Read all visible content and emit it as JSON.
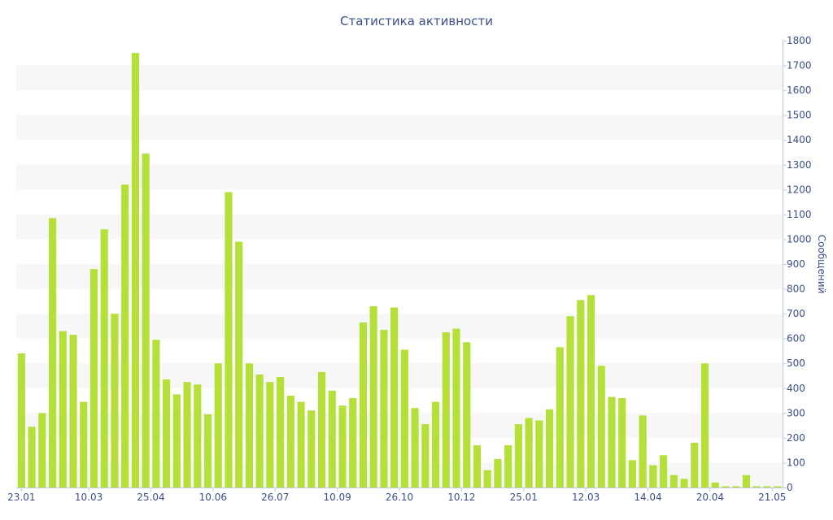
{
  "chart_data": {
    "type": "bar",
    "title": "Статистика активности",
    "ylabel": "Сообщений",
    "ylim": [
      0,
      1800
    ],
    "y_ticks": [
      0,
      100,
      200,
      300,
      400,
      500,
      600,
      700,
      800,
      900,
      1000,
      1100,
      1200,
      1300,
      1400,
      1500,
      1600,
      1700,
      1800
    ],
    "x_tick_labels": [
      {
        "label": "23.01",
        "index": 0
      },
      {
        "label": "10.03",
        "index": 6.5
      },
      {
        "label": "25.04",
        "index": 12.5
      },
      {
        "label": "10.06",
        "index": 18.5
      },
      {
        "label": "26.07",
        "index": 24.5
      },
      {
        "label": "10.09",
        "index": 30.5
      },
      {
        "label": "26.10",
        "index": 36.5
      },
      {
        "label": "10.12",
        "index": 42.5
      },
      {
        "label": "25.01",
        "index": 48.5
      },
      {
        "label": "12.03",
        "index": 54.5
      },
      {
        "label": "14.04",
        "index": 60.5
      },
      {
        "label": "20.04",
        "index": 66.5
      },
      {
        "label": "21.05",
        "index": 72.5
      }
    ],
    "bar_color": "#b5e03a",
    "grid": "horizontal-bands",
    "values": [
      540,
      245,
      300,
      1085,
      630,
      615,
      345,
      880,
      1040,
      700,
      1220,
      1750,
      1345,
      595,
      435,
      375,
      425,
      415,
      295,
      500,
      1190,
      990,
      500,
      455,
      425,
      445,
      370,
      345,
      310,
      465,
      390,
      330,
      360,
      665,
      730,
      635,
      725,
      555,
      320,
      255,
      345,
      625,
      640,
      585,
      170,
      70,
      115,
      170,
      255,
      280,
      270,
      315,
      565,
      690,
      755,
      775,
      490,
      365,
      360,
      110,
      290,
      90,
      130,
      50,
      35,
      180,
      500,
      20,
      5,
      5,
      50,
      5,
      5,
      5
    ]
  }
}
